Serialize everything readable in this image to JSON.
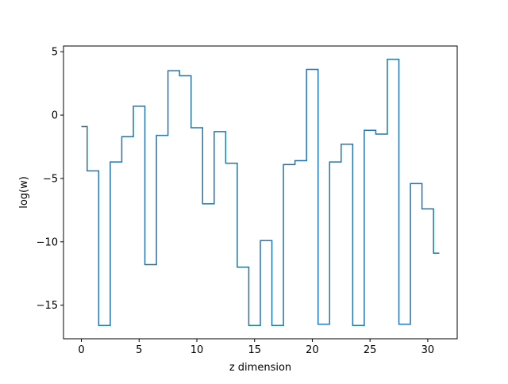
{
  "chart_data": {
    "type": "line",
    "drawstyle": "steps-mid",
    "title": "",
    "xlabel": "z dimension",
    "ylabel": "log(w)",
    "xlim": [
      -1.55,
      32.55
    ],
    "ylim": [
      -17.65,
      5.45
    ],
    "xticks": [
      0,
      5,
      10,
      15,
      20,
      25,
      30
    ],
    "yticks": [
      5,
      0,
      -5,
      -10,
      -15
    ],
    "ytick_labels": [
      "5",
      "0",
      "−5",
      "−10",
      "−15"
    ],
    "grid": false,
    "legend": "none",
    "series": [
      {
        "color": "#1f77b4",
        "x": [
          0,
          1,
          2,
          3,
          4,
          5,
          6,
          7,
          8,
          9,
          10,
          11,
          12,
          13,
          14,
          15,
          16,
          17,
          18,
          19,
          20,
          21,
          22,
          23,
          24,
          25,
          26,
          27,
          28,
          29,
          30,
          31
        ],
        "y": [
          -0.9,
          -4.4,
          -16.6,
          -3.7,
          -1.7,
          0.7,
          -11.8,
          -1.6,
          3.5,
          3.1,
          -1.0,
          -7.0,
          -1.3,
          -3.8,
          -12.0,
          -16.6,
          -9.9,
          -16.6,
          -3.9,
          -3.6,
          3.6,
          -16.5,
          -3.7,
          -2.3,
          -16.6,
          -1.2,
          -1.5,
          4.4,
          -16.5,
          -5.4,
          -7.4,
          -10.9
        ]
      }
    ]
  }
}
